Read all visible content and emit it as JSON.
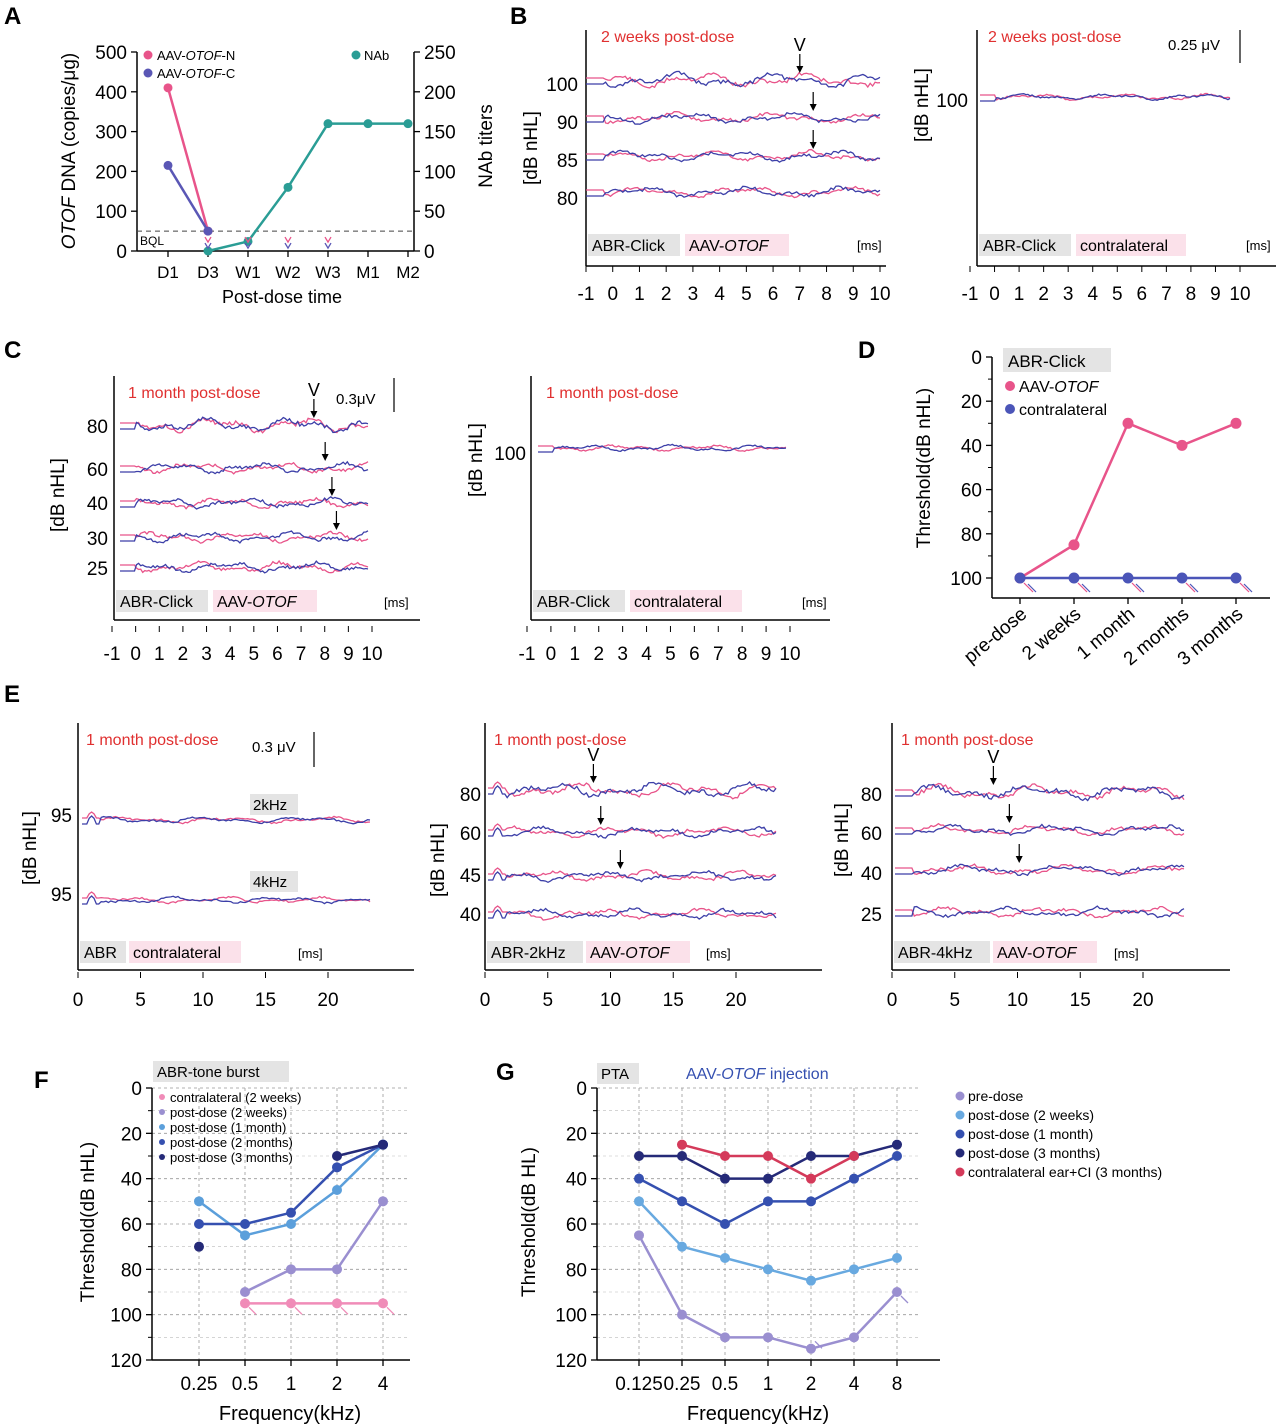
{
  "panel_labels": {
    "A": "A",
    "B": "B",
    "C": "C",
    "D": "D",
    "E": "E",
    "F": "F",
    "G": "G"
  },
  "abr_tags": {
    "abr_click": "ABR-Click",
    "aav_prefix": "AAV-",
    "otof": "OTOF",
    "contralateral": "contralateral",
    "ms": "[ms]",
    "abr": "ABR",
    "abr_2k": "ABR-2kHz",
    "abr_4k": "ABR-4kHz",
    "wave_v": "V"
  },
  "B": {
    "title": "2 weeks post-dose",
    "ylabel": "[dB nHL]",
    "scale": "0.25 μV",
    "left_levels": [
      "100",
      "90",
      "85",
      "80"
    ],
    "right_levels": [
      "100"
    ],
    "x_ticks": [
      "-1",
      "0",
      "1",
      "2",
      "3",
      "4",
      "5",
      "6",
      "7",
      "8",
      "9",
      "10"
    ]
  },
  "C": {
    "title": "1 month post-dose",
    "ylabel": "[dB nHL]",
    "scale": "0.3μV",
    "left_levels": [
      "80",
      "60",
      "40",
      "30",
      "25"
    ],
    "right_levels": [
      "100"
    ],
    "x_ticks": [
      "-1",
      "0",
      "1",
      "2",
      "3",
      "4",
      "5",
      "6",
      "7",
      "8",
      "9",
      "10"
    ]
  },
  "E": {
    "title": "1 month post-dose",
    "ylabel": "[dB nHL]",
    "scale": "0.3 μV",
    "p1_levels": [
      "95",
      "95"
    ],
    "freq_2k": "2kHz",
    "freq_4k": "4kHz",
    "p2_levels": [
      "80",
      "60",
      "45",
      "40"
    ],
    "p3_levels": [
      "80",
      "60",
      "40",
      "25"
    ],
    "x_ticks": [
      "0",
      "5",
      "10",
      "15",
      "20"
    ]
  },
  "chart_data": [
    {
      "type": "line",
      "panel": "A",
      "categories": [
        "D1",
        "D3",
        "W1",
        "W2",
        "W3",
        "M1",
        "M2"
      ],
      "xlabel": "Post-dose time",
      "ylabel_italic": "OTOF",
      "ylabel_rest": " DNA (copies/μg)",
      "y2label": "NAb titers",
      "ylim": [
        0,
        500
      ],
      "y2lim": [
        0,
        250
      ],
      "yticks": [
        "0",
        "100",
        "200",
        "300",
        "400",
        "500"
      ],
      "y2ticks": [
        "0",
        "50",
        "100",
        "150",
        "200",
        "250"
      ],
      "bql_label": "BQL",
      "bql_value": 50,
      "legend": {
        "n_prefix": "AAV-",
        "n_italic": "OTOF",
        "n_suffix": "-N",
        "c_prefix": "AAV-",
        "c_italic": "OTOF",
        "c_suffix": "-C",
        "nab": "NAb"
      },
      "series": [
        {
          "name": "AAV-OTOF-N",
          "color": "#e8548a",
          "axis": "left",
          "values": [
            410,
            50,
            null,
            null,
            null,
            null,
            null
          ]
        },
        {
          "name": "AAV-OTOF-C",
          "color": "#5a57b5",
          "axis": "left",
          "values": [
            215,
            50,
            null,
            null,
            null,
            null,
            null
          ]
        },
        {
          "name": "NAb",
          "color": "#2a9d95",
          "axis": "right",
          "values": [
            null,
            0,
            12,
            80,
            160,
            160,
            160
          ]
        }
      ],
      "bql_markers": [
        "D3",
        "W1",
        "W2",
        "W3"
      ]
    },
    {
      "type": "line",
      "panel": "D",
      "tag": "ABR-Click",
      "categories": [
        "pre-dose",
        "2 weeks",
        "1 month",
        "2 months",
        "3 months"
      ],
      "ylabel": "Threshold(dB nHL)",
      "ylim": [
        0,
        100
      ],
      "inverted": true,
      "yticks": [
        "0",
        "20",
        "40",
        "60",
        "80",
        "100"
      ],
      "legend_otof_prefix": "AAV-",
      "legend_otof_italic": "OTOF",
      "legend_contra": "contralateral",
      "series": [
        {
          "name": "AAV-OTOF",
          "color": "#e8548a",
          "values": [
            100,
            85,
            30,
            40,
            30
          ]
        },
        {
          "name": "contralateral",
          "color": "#4b55b8",
          "values": [
            100,
            100,
            100,
            100,
            100
          ]
        }
      ]
    },
    {
      "type": "line",
      "panel": "F",
      "tag": "ABR-tone burst",
      "categories": [
        "0.25",
        "0.5",
        "1",
        "2",
        "4"
      ],
      "xlabel": "Frequency(kHz)",
      "ylabel": "Threshold(dB nHL)",
      "ylim": [
        0,
        120
      ],
      "inverted": true,
      "yticks": [
        "0",
        "20",
        "40",
        "60",
        "80",
        "100",
        "120"
      ],
      "series": [
        {
          "name": "contralateral (2 weeks)",
          "color": "#f08cb8",
          "values": [
            null,
            95,
            95,
            95,
            95
          ]
        },
        {
          "name": "post-dose (2 weeks)",
          "color": "#9a8fd0",
          "values": [
            null,
            90,
            80,
            80,
            50
          ]
        },
        {
          "name": "post-dose (1 month)",
          "color": "#5b9fdb",
          "values": [
            50,
            65,
            60,
            45,
            25
          ]
        },
        {
          "name": "post-dose (2 months)",
          "color": "#3550b0",
          "values": [
            60,
            60,
            55,
            35,
            25
          ]
        },
        {
          "name": "post-dose (3 months)",
          "color": "#252a78",
          "values": [
            70,
            null,
            null,
            30,
            25
          ]
        }
      ]
    },
    {
      "type": "line",
      "panel": "G",
      "tag": "PTA",
      "subtitle_prefix": "AAV-",
      "subtitle_italic": "OTOF",
      "subtitle_suffix": " injection",
      "categories": [
        "0.125",
        "0.25",
        "0.5",
        "1",
        "2",
        "4",
        "8"
      ],
      "xlabel": "Frequency(kHz)",
      "ylabel": "Threshold(dB HL)",
      "ylim": [
        0,
        120
      ],
      "inverted": true,
      "yticks": [
        "0",
        "20",
        "40",
        "60",
        "80",
        "100",
        "120"
      ],
      "series": [
        {
          "name": "pre-dose",
          "color": "#9a8fd0",
          "values": [
            65,
            100,
            110,
            110,
            115,
            110,
            90
          ]
        },
        {
          "name": "post-dose (2 weeks)",
          "color": "#68a9e0",
          "values": [
            50,
            70,
            75,
            80,
            85,
            80,
            75
          ]
        },
        {
          "name": "post-dose (1 month)",
          "color": "#3550b0",
          "values": [
            40,
            50,
            60,
            50,
            50,
            40,
            30
          ]
        },
        {
          "name": "post-dose (3 months)",
          "color": "#252a78",
          "values": [
            30,
            30,
            40,
            40,
            30,
            30,
            25
          ]
        },
        {
          "name": "contralateral ear+CI (3 months)",
          "color": "#d43a5a",
          "values": [
            null,
            25,
            30,
            30,
            40,
            30,
            null
          ]
        }
      ]
    }
  ]
}
